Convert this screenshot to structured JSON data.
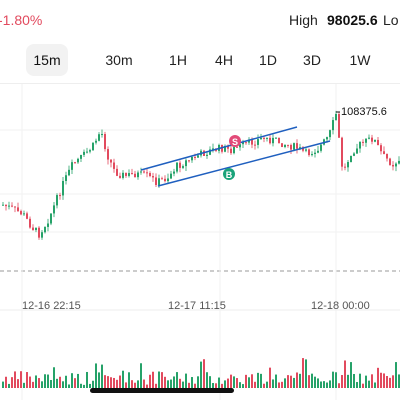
{
  "header": {
    "change": "-1.80%",
    "high_label": "High",
    "high_value": "98025.6",
    "low_label": "Lo"
  },
  "tabs": [
    {
      "label": "15m",
      "active": true
    },
    {
      "label": "30m",
      "active": false
    },
    {
      "label": "1H",
      "active": false
    },
    {
      "label": "4H",
      "active": false
    },
    {
      "label": "1D",
      "active": false
    },
    {
      "label": "3D",
      "active": false
    },
    {
      "label": "1W",
      "active": false
    }
  ],
  "chart": {
    "max_price_label": "108375.6",
    "x_labels": [
      "12-16 22:15",
      "12-17 11:15",
      "12-18 00:00"
    ],
    "markers": {
      "sell": "S",
      "buy": "B"
    }
  },
  "colors": {
    "up": "#26a269",
    "down": "#e24a5e",
    "channel": "#1f5fbf",
    "buy_marker": "#1aa37a",
    "sell_marker": "#e24a78"
  }
}
